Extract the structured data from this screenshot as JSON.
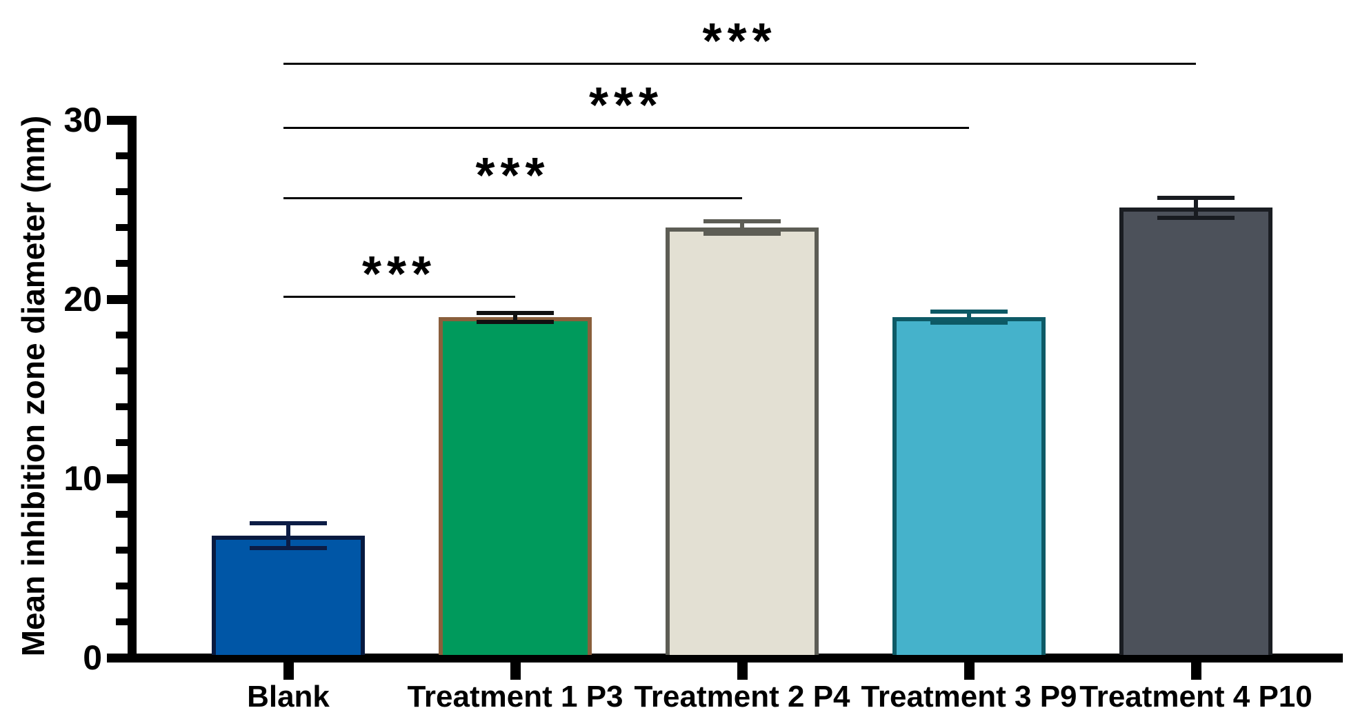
{
  "chart_data": {
    "type": "bar",
    "title": "",
    "xlabel": "",
    "ylabel": "Mean inhibition zone diameter (mm)",
    "ylim": [
      0,
      30
    ],
    "yticks_major": [
      0,
      10,
      20,
      30
    ],
    "ytick_labels": [
      "0",
      "10",
      "20",
      "30"
    ],
    "minor_tick_step_mm": 2,
    "grid": "off",
    "legend": "none",
    "categories": [
      "Blank",
      "Treatment 1 P3",
      "Treatment 2 P4",
      "Treatment 3 P9",
      "Treatment 4 P10"
    ],
    "series": [
      {
        "name": "Mean inhibition zone diameter (mm)",
        "values": [
          6.8,
          19.0,
          24.0,
          19.0,
          25.1
        ],
        "errors": [
          0.7,
          0.25,
          0.35,
          0.3,
          0.55
        ]
      }
    ],
    "bars": [
      {
        "label": "Blank",
        "value": 6.8,
        "error": 0.7,
        "fill": "#0056a6",
        "border": "#081a40",
        "error_color": "#0c1c45"
      },
      {
        "label": "Treatment 1 P3",
        "value": 19.0,
        "error": 0.25,
        "fill": "#009a5c",
        "border": "#8a5f3c",
        "error_color": "#111111"
      },
      {
        "label": "Treatment 2 P4",
        "value": 24.0,
        "error": 0.35,
        "fill": "#e3e0d3",
        "border": "#5d5d55",
        "error_color": "#5d5d55"
      },
      {
        "label": "Treatment 3 P9",
        "value": 19.0,
        "error": 0.3,
        "fill": "#45b2cb",
        "border": "#0e5a66",
        "error_color": "#0d5965"
      },
      {
        "label": "Treatment 4 P10",
        "value": 25.1,
        "error": 0.55,
        "fill": "#4c515a",
        "border": "#1a1d22",
        "error_color": "#181b20"
      }
    ],
    "significance": [
      {
        "compare": [
          "Blank",
          "Treatment 1 P3"
        ],
        "label": "***",
        "line_mm": 20.2
      },
      {
        "compare": [
          "Blank",
          "Treatment 2 P4"
        ],
        "label": "***",
        "line_mm": 25.7
      },
      {
        "compare": [
          "Blank",
          "Treatment 3 P9"
        ],
        "label": "***",
        "line_mm": 29.6
      },
      {
        "compare": [
          "Blank",
          "Treatment 4 P10"
        ],
        "label": "***",
        "line_mm": 33.2
      }
    ],
    "axis_color": "#000000",
    "background_color": "#ffffff"
  }
}
